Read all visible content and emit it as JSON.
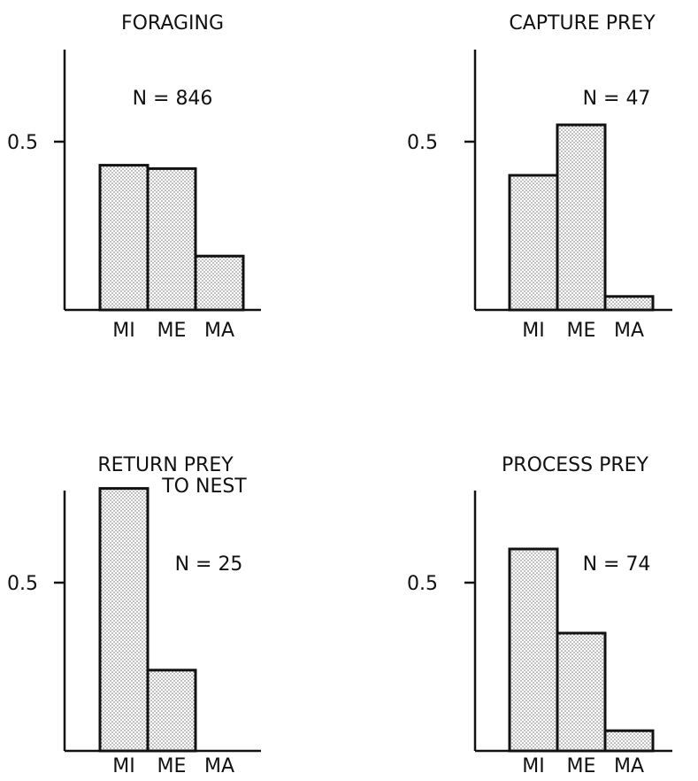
{
  "chart_data": [
    {
      "type": "bar",
      "title": "FORAGING",
      "annotation": "N = 846",
      "categories": [
        "MI",
        "ME",
        "MA"
      ],
      "values": [
        0.43,
        0.42,
        0.16
      ],
      "ylim": [
        0,
        1.0
      ],
      "yticks": [
        {
          "value": 0.5,
          "label": "0.5"
        }
      ],
      "grid": false
    },
    {
      "type": "bar",
      "title": "CAPTURE PREY",
      "annotation": "N = 47",
      "categories": [
        "MI",
        "ME",
        "MA"
      ],
      "values": [
        0.4,
        0.55,
        0.04
      ],
      "ylim": [
        0,
        1.0
      ],
      "yticks": [
        {
          "value": 0.5,
          "label": "0.5"
        }
      ],
      "grid": false
    },
    {
      "type": "bar",
      "title": "RETURN PREY\nTO NEST",
      "annotation": "N = 25",
      "categories": [
        "MI",
        "ME",
        "MA"
      ],
      "values": [
        0.78,
        0.24,
        0
      ],
      "ylim": [
        0,
        1.0
      ],
      "yticks": [
        {
          "value": 0.5,
          "label": "0.5"
        }
      ],
      "grid": false
    },
    {
      "type": "bar",
      "title": "PROCESS PREY",
      "annotation": "N = 74",
      "categories": [
        "MI",
        "ME",
        "MA"
      ],
      "values": [
        0.6,
        0.35,
        0.06
      ],
      "ylim": [
        0,
        1.0
      ],
      "yticks": [
        {
          "value": 0.5,
          "label": "0.5"
        }
      ],
      "grid": false
    }
  ]
}
